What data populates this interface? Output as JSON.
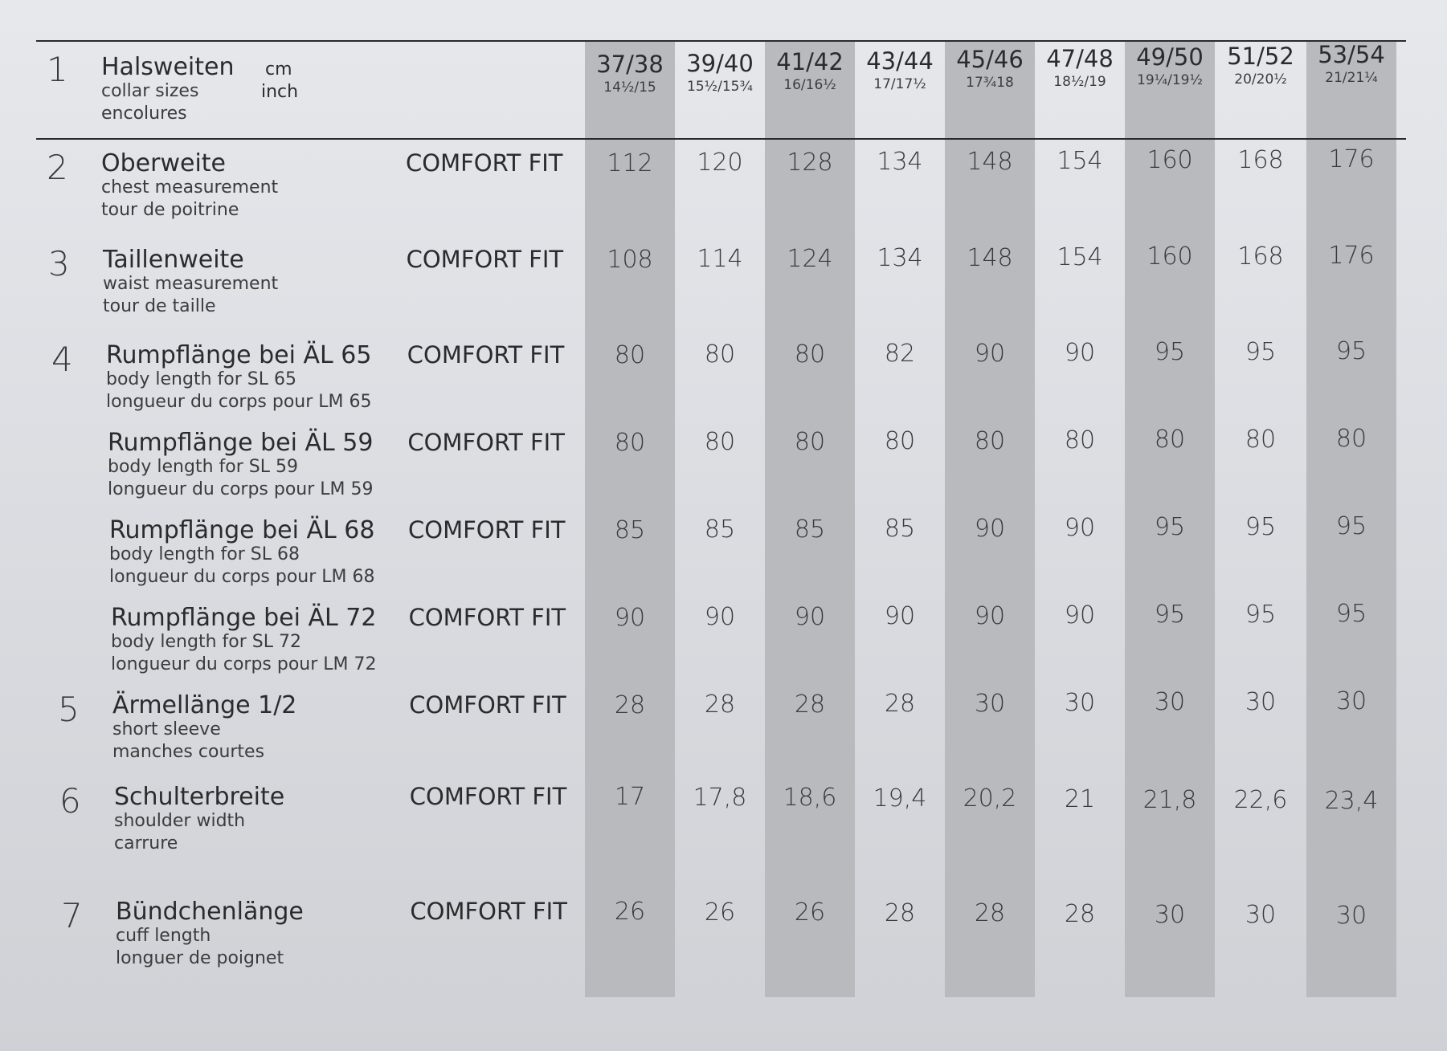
{
  "header": {
    "row_number": "1",
    "title": "Halsweiten",
    "subtitle_en": "collar sizes",
    "subtitle_fr": "encolures",
    "unit_cm": "cm",
    "unit_inch": "inch",
    "sizes": [
      {
        "cm": "37/38",
        "inch": "14½/15"
      },
      {
        "cm": "39/40",
        "inch": "15½/15¾"
      },
      {
        "cm": "41/42",
        "inch": "16/16½"
      },
      {
        "cm": "43/44",
        "inch": "17/17½"
      },
      {
        "cm": "45/46",
        "inch": "17¾18"
      },
      {
        "cm": "47/48",
        "inch": "18½/19"
      },
      {
        "cm": "49/50",
        "inch": "19¼/19½"
      },
      {
        "cm": "51/52",
        "inch": "20/20½"
      },
      {
        "cm": "53/54",
        "inch": "21/21¼"
      }
    ]
  },
  "rows": [
    {
      "number": "2",
      "title": "Oberweite",
      "en": "chest measurement",
      "fr": "tour de poitrine",
      "fit": "COMFORT FIT",
      "values": [
        "112",
        "120",
        "128",
        "134",
        "148",
        "154",
        "160",
        "168",
        "176"
      ]
    },
    {
      "number": "3",
      "title": "Taillenweite",
      "en": "waist measurement",
      "fr": "tour de taille",
      "fit": "COMFORT FIT",
      "values": [
        "108",
        "114",
        "124",
        "134",
        "148",
        "154",
        "160",
        "168",
        "176"
      ]
    },
    {
      "number": "4",
      "title": "Rumpflänge bei ÄL 65",
      "en": "body length for SL 65",
      "fr": "longueur du corps pour LM 65",
      "fit": "COMFORT FIT",
      "values": [
        "80",
        "80",
        "80",
        "82",
        "90",
        "90",
        "95",
        "95",
        "95"
      ]
    },
    {
      "number": "",
      "title": "Rumpflänge bei ÄL 59",
      "en": "body length for SL 59",
      "fr": "longueur du corps pour LM 59",
      "fit": "COMFORT FIT",
      "values": [
        "80",
        "80",
        "80",
        "80",
        "80",
        "80",
        "80",
        "80",
        "80"
      ]
    },
    {
      "number": "",
      "title": "Rumpflänge bei ÄL 68",
      "en": "body length for SL 68",
      "fr": "longueur du corps pour LM 68",
      "fit": "COMFORT FIT",
      "values": [
        "85",
        "85",
        "85",
        "85",
        "90",
        "90",
        "95",
        "95",
        "95"
      ]
    },
    {
      "number": "",
      "title": "Rumpflänge bei ÄL 72",
      "en": "body length for SL 72",
      "fr": "longueur du corps pour LM 72",
      "fit": "COMFORT FIT",
      "values": [
        "90",
        "90",
        "90",
        "90",
        "90",
        "90",
        "95",
        "95",
        "95"
      ]
    },
    {
      "number": "5",
      "title": "Ärmellänge 1/2",
      "en": "short sleeve",
      "fr": "manches courtes",
      "fit": "COMFORT FIT",
      "values": [
        "28",
        "28",
        "28",
        "28",
        "30",
        "30",
        "30",
        "30",
        "30"
      ]
    },
    {
      "number": "6",
      "title": "Schulterbreite",
      "en": "shoulder width",
      "fr": "carrure",
      "fit": "COMFORT FIT",
      "values": [
        "17",
        "17,8",
        "18,6",
        "19,4",
        "20,2",
        "21",
        "21,8",
        "22,6",
        "23,4"
      ]
    },
    {
      "number": "7",
      "title": "Bündchenlänge",
      "en": "cuff length",
      "fr": "longuer de poignet",
      "fit": "COMFORT FIT",
      "values": [
        "26",
        "26",
        "26",
        "28",
        "28",
        "28",
        "30",
        "30",
        "30"
      ]
    }
  ]
}
